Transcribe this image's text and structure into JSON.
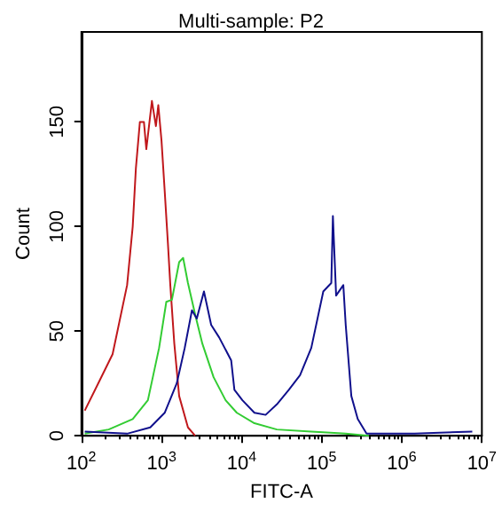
{
  "chart_data": {
    "type": "line",
    "title": "Multi-sample: P2",
    "xlabel": "FITC-A",
    "ylabel": "Count",
    "log": "x",
    "xlim": [
      100,
      10000000
    ],
    "xticks": [
      {
        "value": 100,
        "label": "10$^{2}$"
      },
      {
        "value": 1000,
        "label": "10$^{3}$"
      },
      {
        "value": 10000,
        "label": "10$^{4}$"
      },
      {
        "value": 100000,
        "label": "10$^{5}$"
      },
      {
        "value": 1000000,
        "label": "10$^{6}$"
      },
      {
        "value": 10000000,
        "label": "10$^{7}$"
      }
    ],
    "ylim": [
      0,
      193
    ],
    "yticks": [
      0,
      50,
      100,
      150
    ],
    "grid": false,
    "marker": "none",
    "line_style": "solid",
    "series": [
      {
        "color": "#c0181c",
        "x": [
          110,
          162,
          245,
          372,
          437,
          479,
          537,
          603,
          646,
          759,
          851,
          912,
          1000,
          1096,
          1202,
          1288,
          1445,
          1660,
          2138,
          2630
        ],
        "values": [
          12,
          25,
          39,
          72,
          100,
          128,
          150,
          150,
          137,
          160,
          148,
          158,
          141,
          117,
          92,
          72,
          44,
          19,
          4,
          0
        ]
      },
      {
        "color": "#33cc33",
        "x": [
          110,
          219,
          437,
          676,
          933,
          1148,
          1349,
          1660,
          1862,
          2138,
          2630,
          3236,
          4467,
          6310,
          8710,
          14450,
          27540,
          74130,
          199500,
          389000
        ],
        "values": [
          1,
          3,
          8,
          17,
          42,
          64,
          65,
          83,
          85,
          73,
          58,
          44,
          28,
          17,
          11,
          6,
          3,
          2,
          1,
          0
        ]
      },
      {
        "color": "#10108c",
        "x": [
          110,
          372,
          724,
          1096,
          1549,
          1950,
          2399,
          2754,
          3388,
          4169,
          5248,
          7413,
          8128,
          10230,
          14450,
          19950,
          27540,
          38900,
          53700,
          74130,
          104700,
          131800,
          138000,
          151400,
          186200,
          199500,
          234400,
          281800,
          363100,
          631000,
          1445000,
          7586000
        ],
        "values": [
          2,
          1,
          4,
          11,
          25,
          42,
          60,
          56,
          69,
          53,
          47,
          36,
          22,
          17,
          11,
          10,
          15,
          22,
          29,
          42,
          69,
          73,
          105,
          67,
          72,
          53,
          19,
          8,
          1,
          1,
          1,
          2
        ]
      }
    ]
  }
}
